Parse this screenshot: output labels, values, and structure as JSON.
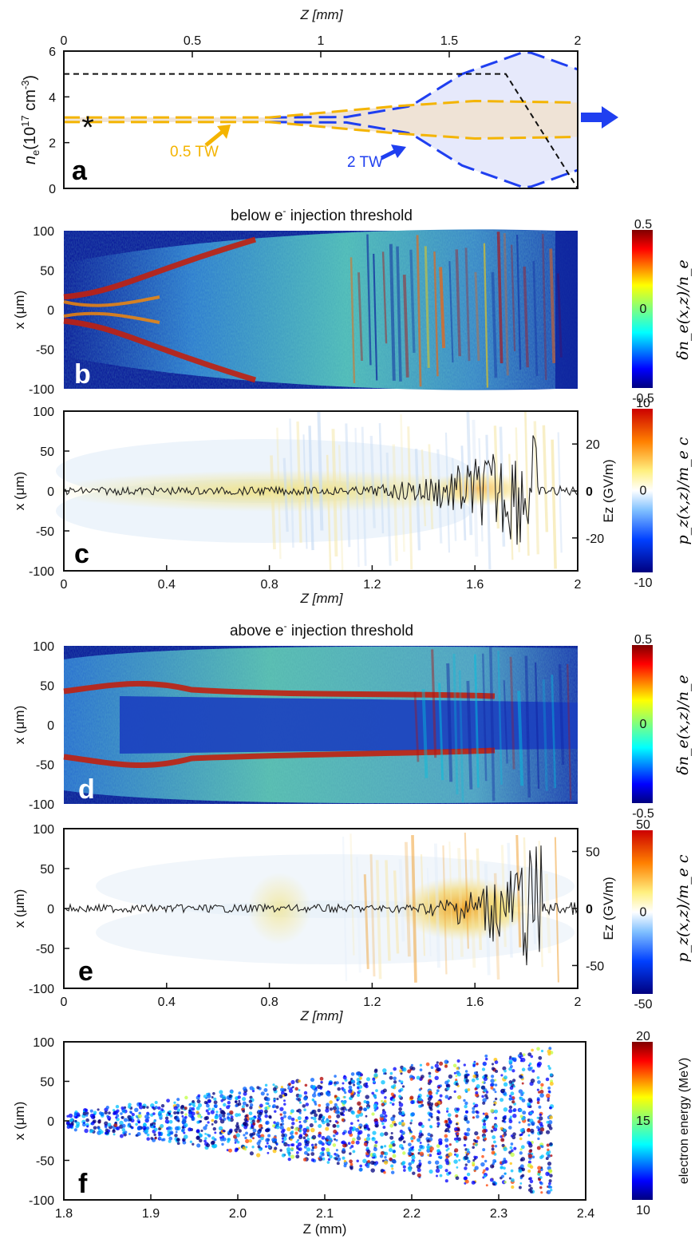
{
  "colors": {
    "orange": "#f4b400",
    "blue": "#1f3ff0",
    "black": "#111111",
    "jet_low": "#00007f",
    "jet_high": "#7f0000",
    "peach_fill": "#efe3d6",
    "lavender_fill": "#e6e9fb"
  },
  "chart_data": [
    {
      "id": "a",
      "type": "line",
      "panel_letter": "a",
      "xlabel_top": "Z [mm]",
      "ylabel": "n",
      "ylabel_sub": "e",
      "ylabel_unit": "(10",
      "ylabel_exp": "17",
      "ylabel_unit2": " cm",
      "ylabel_exp2": "-3",
      "ylabel_close": ")",
      "xlim": [
        0,
        2
      ],
      "ylim": [
        0,
        6
      ],
      "x_ticks": [
        0,
        0.5,
        1,
        1.5,
        2
      ],
      "x_tick_labels": [
        "0",
        "0.5",
        "1",
        "1.5",
        "2"
      ],
      "y_ticks": [
        0,
        2,
        4,
        6
      ],
      "y_tick_labels": [
        "0",
        "2",
        "4",
        "6"
      ],
      "density_profile": {
        "x": [
          0,
          1.72,
          2.0
        ],
        "y": [
          5,
          5,
          0
        ]
      },
      "annotations": {
        "orange_beam": "0.5 TW",
        "blue_beam": "2 TW",
        "marker": "*"
      },
      "beam_0p5TW": {
        "x": [
          0,
          0.8,
          1.3,
          1.6,
          2.0
        ],
        "half_width": [
          0.1,
          0.1,
          0.6,
          0.82,
          0.75
        ],
        "center": 3
      },
      "beam_2TW": {
        "x": [
          0.8,
          1.1,
          1.35,
          1.55,
          1.8,
          2.0
        ],
        "half_width": [
          0.1,
          0.12,
          0.6,
          2.0,
          3.0,
          2.2
        ],
        "center": 3
      }
    },
    {
      "id": "b",
      "type": "heatmap",
      "panel_letter": "b",
      "title": "below e⁻ injection threshold",
      "title_main": "below e",
      "title_sup": "-",
      "title_rest": " injection threshold",
      "ylabel": "x (μm)",
      "xlim": [
        0,
        2
      ],
      "ylim": [
        -100,
        100
      ],
      "y_ticks": [
        100,
        50,
        0,
        -50,
        -100
      ],
      "y_tick_labels": [
        "100",
        "50",
        "0",
        "-50",
        "-100"
      ],
      "colorbar": {
        "label": "δn_e(x,z)/n_e",
        "max": 0.5,
        "mid": 0,
        "min": -0.5,
        "tick_labels": [
          "0.5",
          "0",
          "-0.5"
        ],
        "colormap": "jet"
      }
    },
    {
      "id": "c",
      "type": "heatmap",
      "panel_letter": "c",
      "ylabel": "x (μm)",
      "xlabel": "Z [mm]",
      "xlim": [
        0,
        2
      ],
      "ylim": [
        -100,
        100
      ],
      "x_ticks": [
        0,
        0.4,
        0.8,
        1.2,
        1.6,
        2
      ],
      "x_tick_labels": [
        "0",
        "0.4",
        "0.8",
        "1.2",
        "1.6",
        "2"
      ],
      "y_ticks": [
        100,
        50,
        0,
        -50,
        -100
      ],
      "y_tick_labels": [
        "100",
        "50",
        "0",
        "-50",
        "-100"
      ],
      "right_axis": {
        "label": "Ez (GV/m)",
        "ticks": [
          20,
          0,
          -20
        ],
        "tick_labels": [
          "20",
          "0",
          "-20"
        ]
      },
      "colorbar": {
        "label": "p_z(x,z)/m_e c",
        "max": 10,
        "mid": 0,
        "min": -10,
        "tick_labels": [
          "10",
          "0",
          "-10"
        ],
        "colormap": "jet-white"
      }
    },
    {
      "id": "d",
      "type": "heatmap",
      "panel_letter": "d",
      "title": "above e⁻ injection threshold",
      "title_main": "above e",
      "title_sup": "-",
      "title_rest": " injection threshold",
      "ylabel": "x (μm)",
      "xlim": [
        0,
        2
      ],
      "ylim": [
        -100,
        100
      ],
      "y_ticks": [
        100,
        50,
        0,
        -50,
        -100
      ],
      "y_tick_labels": [
        "100",
        "50",
        "0",
        "-50",
        "-100"
      ],
      "colorbar": {
        "label": "δn_e(x,z)/n_e",
        "max": 0.5,
        "mid": 0,
        "min": -0.5,
        "tick_labels": [
          "0.5",
          "0",
          "-0.5"
        ],
        "colormap": "jet"
      }
    },
    {
      "id": "e",
      "type": "heatmap",
      "panel_letter": "e",
      "ylabel": "x (μm)",
      "xlabel": "Z [mm]",
      "xlim": [
        0,
        2
      ],
      "ylim": [
        -100,
        100
      ],
      "x_ticks": [
        0,
        0.4,
        0.8,
        1.2,
        1.6,
        2
      ],
      "x_tick_labels": [
        "0",
        "0.4",
        "0.8",
        "1.2",
        "1.6",
        "2"
      ],
      "y_ticks": [
        100,
        50,
        0,
        -50,
        -100
      ],
      "y_tick_labels": [
        "100",
        "50",
        "0",
        "-50",
        "-100"
      ],
      "right_axis": {
        "label": "Ez (GV/m)",
        "ticks": [
          50,
          0,
          -50
        ],
        "tick_labels": [
          "50",
          "0",
          "-50"
        ]
      },
      "colorbar": {
        "label": "p_z(x,z)/m_e c",
        "max": 50,
        "mid": 0,
        "min": -50,
        "tick_labels": [
          "50",
          "0",
          "-50"
        ],
        "colormap": "jet-white"
      }
    },
    {
      "id": "f",
      "type": "scatter",
      "panel_letter": "f",
      "ylabel": "x (μm)",
      "xlabel": "Z (mm)",
      "xlim": [
        1.8,
        2.4
      ],
      "ylim": [
        -100,
        100
      ],
      "x_ticks": [
        1.8,
        1.9,
        2.0,
        2.1,
        2.2,
        2.3,
        2.4
      ],
      "x_tick_labels": [
        "1.8",
        "1.9",
        "2.0",
        "2.1",
        "2.2",
        "2.3",
        "2.4"
      ],
      "y_ticks": [
        100,
        50,
        0,
        -50,
        -100
      ],
      "y_tick_labels": [
        "100",
        "50",
        "0",
        "-50",
        "-100"
      ],
      "colorbar": {
        "label": "electron energy (MeV)",
        "max": 20,
        "mid": 15,
        "min": 10,
        "tick_labels": [
          "20",
          "15",
          "10"
        ],
        "colormap": "jet"
      }
    }
  ]
}
